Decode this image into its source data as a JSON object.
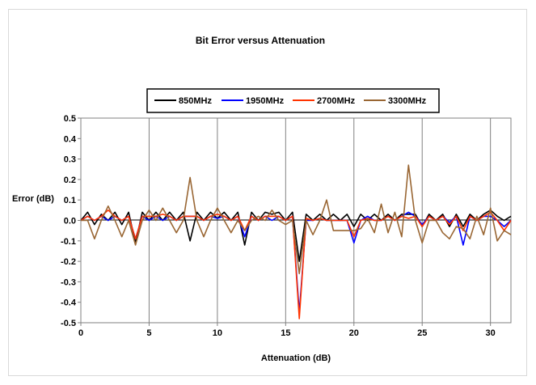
{
  "chart_data": {
    "type": "line",
    "title": "Bit Error versus Attenuation",
    "xlabel": "Attenuation (dB)",
    "ylabel": "Error (dB)",
    "xlim": [
      0,
      31.5
    ],
    "ylim": [
      -0.5,
      0.5
    ],
    "xticks": [
      "0",
      "5",
      "10",
      "15",
      "20",
      "25",
      "30"
    ],
    "yticks": [
      "0.5",
      "0.4",
      "0.3",
      "0.2",
      "0.1",
      "0.0",
      "-0.1",
      "-0.2",
      "-0.3",
      "-0.4",
      "-0.5"
    ],
    "grid": "vertical",
    "legend_position": "top",
    "x": [
      0,
      0.5,
      1,
      1.5,
      2,
      2.5,
      3,
      3.5,
      4,
      4.5,
      5,
      5.5,
      6,
      6.5,
      7,
      7.5,
      8,
      8.5,
      9,
      9.5,
      10,
      10.5,
      11,
      11.5,
      12,
      12.5,
      13,
      13.5,
      14,
      14.5,
      15,
      15.5,
      16,
      16.5,
      17,
      17.5,
      18,
      18.5,
      19,
      19.5,
      20,
      20.5,
      21,
      21.5,
      22,
      22.5,
      23,
      23.5,
      24,
      24.5,
      25,
      25.5,
      26,
      26.5,
      27,
      27.5,
      28,
      28.5,
      29,
      29.5,
      30,
      30.5,
      31,
      31.5
    ],
    "series": [
      {
        "name": "850MHz",
        "color": "#000000",
        "values": [
          0.0,
          0.04,
          -0.02,
          0.03,
          0.0,
          0.04,
          -0.02,
          0.04,
          -0.11,
          0.04,
          0.0,
          0.04,
          0.0,
          0.04,
          0.0,
          0.04,
          -0.1,
          0.04,
          0.0,
          0.04,
          0.01,
          0.04,
          0.0,
          0.04,
          -0.12,
          0.04,
          0.0,
          0.04,
          0.03,
          0.04,
          0.0,
          0.04,
          -0.2,
          0.03,
          0.0,
          0.03,
          0.0,
          0.03,
          0.0,
          0.03,
          -0.03,
          0.03,
          0.0,
          0.03,
          0.0,
          0.03,
          0.0,
          0.03,
          0.03,
          0.03,
          -0.03,
          0.03,
          0.0,
          0.03,
          -0.03,
          0.03,
          -0.03,
          0.03,
          0.0,
          0.03,
          0.05,
          0.02,
          0.0,
          0.02
        ]
      },
      {
        "name": "1950MHz",
        "color": "#0000ff",
        "values": [
          0.0,
          0.02,
          0.0,
          0.02,
          0.0,
          0.02,
          0.0,
          0.02,
          -0.09,
          0.02,
          0.0,
          0.02,
          0.0,
          0.02,
          0.0,
          0.02,
          0.02,
          0.02,
          0.0,
          0.02,
          0.01,
          0.02,
          0.0,
          0.02,
          -0.08,
          0.02,
          0.0,
          0.02,
          0.0,
          0.02,
          0.0,
          0.02,
          -0.45,
          0.0,
          0.0,
          0.01,
          0.0,
          0.0,
          0.0,
          0.0,
          -0.11,
          0.0,
          0.02,
          0.0,
          0.0,
          0.02,
          0.0,
          0.02,
          0.04,
          0.02,
          -0.02,
          0.02,
          0.0,
          0.02,
          -0.01,
          0.02,
          -0.12,
          0.02,
          0.0,
          0.02,
          0.02,
          0.0,
          -0.03,
          0.0
        ]
      },
      {
        "name": "2700MHz",
        "color": "#ff3300",
        "values": [
          0.0,
          0.02,
          0.0,
          0.02,
          0.05,
          0.02,
          0.0,
          0.02,
          -0.09,
          0.02,
          0.02,
          0.02,
          0.03,
          0.02,
          0.0,
          0.02,
          0.02,
          0.02,
          0.0,
          0.02,
          0.03,
          0.02,
          0.0,
          0.02,
          -0.05,
          0.02,
          0.0,
          0.02,
          0.02,
          0.02,
          0.0,
          0.02,
          -0.48,
          0.01,
          0.0,
          0.01,
          0.0,
          0.0,
          0.0,
          0.0,
          -0.08,
          0.0,
          0.01,
          0.0,
          0.0,
          0.02,
          0.0,
          0.02,
          0.01,
          0.02,
          -0.03,
          0.02,
          0.0,
          0.02,
          -0.02,
          0.02,
          -0.05,
          0.02,
          0.0,
          0.02,
          0.04,
          0.0,
          -0.05,
          0.0
        ]
      },
      {
        "name": "3300MHz",
        "color": "#996633",
        "values": [
          0.0,
          0.0,
          -0.09,
          0.0,
          0.07,
          0.0,
          -0.08,
          0.0,
          -0.12,
          0.0,
          0.05,
          0.0,
          0.06,
          0.0,
          -0.06,
          0.0,
          0.21,
          0.0,
          -0.08,
          0.0,
          0.06,
          0.0,
          -0.06,
          0.0,
          -0.05,
          0.0,
          0.02,
          0.0,
          0.05,
          0.0,
          -0.02,
          0.0,
          -0.26,
          0.0,
          -0.07,
          0.0,
          0.1,
          -0.05,
          -0.05,
          -0.05,
          -0.05,
          -0.04,
          0.01,
          -0.06,
          0.08,
          -0.06,
          0.04,
          -0.08,
          0.27,
          0.0,
          -0.11,
          0.0,
          0.0,
          -0.06,
          -0.09,
          -0.03,
          -0.04,
          -0.09,
          0.02,
          -0.07,
          0.06,
          -0.1,
          -0.05,
          -0.07
        ]
      }
    ]
  }
}
